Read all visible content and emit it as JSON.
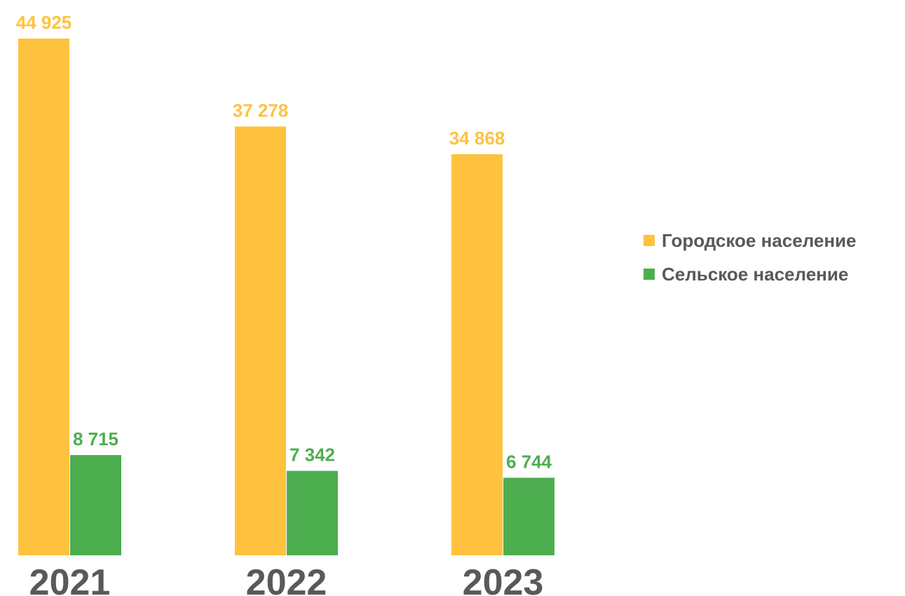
{
  "chart_data": {
    "type": "bar",
    "title": "",
    "xlabel": "",
    "ylabel": "",
    "categories": [
      "2021",
      "2022",
      "2023"
    ],
    "series": [
      {
        "name": "Городское население",
        "values": [
          44925,
          37278,
          34868
        ],
        "value_labels": [
          "44 925",
          "37 278",
          "34 868"
        ],
        "color": "#FFC23E"
      },
      {
        "name": "Сельское население",
        "values": [
          8715,
          7342,
          6744
        ],
        "value_labels": [
          "8 715",
          "7 342",
          "6 744"
        ],
        "color": "#4DAE50"
      }
    ],
    "ylim": [
      0,
      44925
    ],
    "grid": false,
    "axes_visible": false,
    "legend_position": "right"
  }
}
